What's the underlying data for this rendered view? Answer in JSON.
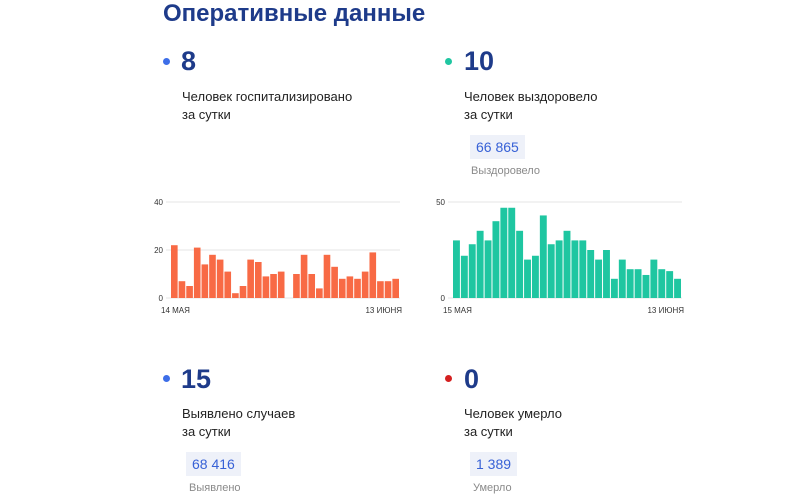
{
  "header": {
    "title": "Оперативные данные"
  },
  "stats": {
    "hospitalized": {
      "value": "8",
      "line1": "Человек госпитализировано",
      "line2": "за сутки",
      "color": "#3d6ee8"
    },
    "recovered": {
      "value": "10",
      "line1": "Человек выздоровело",
      "line2": "за сутки",
      "total": "66 865",
      "total_label": "Выздоровело",
      "color": "#1fc6a1"
    },
    "cases": {
      "value": "15",
      "line1": "Выявлено случаев",
      "line2": "за сутки",
      "total": "68 416",
      "total_label": "Выявлено",
      "color": "#3d6ee8"
    },
    "deaths": {
      "value": "0",
      "line1": "Человек умерло",
      "line2": "за сутки",
      "total": "1 389",
      "total_label": "Умерло",
      "color": "#d42020"
    }
  },
  "chart_data": [
    {
      "type": "bar",
      "series_color": "#f86a45",
      "x_start_label": "14 МАЯ",
      "x_end_label": "13 ИЮНЯ",
      "yticks": [
        "40",
        "20",
        "0"
      ],
      "ylim": [
        0,
        40
      ],
      "values": [
        22,
        7,
        5,
        21,
        14,
        18,
        16,
        11,
        2,
        5,
        16,
        15,
        9,
        10,
        11,
        null,
        10,
        18,
        10,
        4,
        18,
        13,
        8,
        9,
        8,
        11,
        19,
        7,
        7,
        8
      ]
    },
    {
      "type": "bar",
      "series_color": "#1fc6a1",
      "x_start_label": "15 МАЯ",
      "x_end_label": "13 ИЮНЯ",
      "yticks": [
        "50",
        "0"
      ],
      "ylim": [
        0,
        50
      ],
      "values": [
        30,
        22,
        28,
        35,
        30,
        40,
        47,
        47,
        35,
        20,
        22,
        43,
        28,
        30,
        35,
        30,
        30,
        25,
        20,
        25,
        10,
        20,
        15,
        15,
        12,
        20,
        15,
        14,
        10
      ]
    }
  ]
}
